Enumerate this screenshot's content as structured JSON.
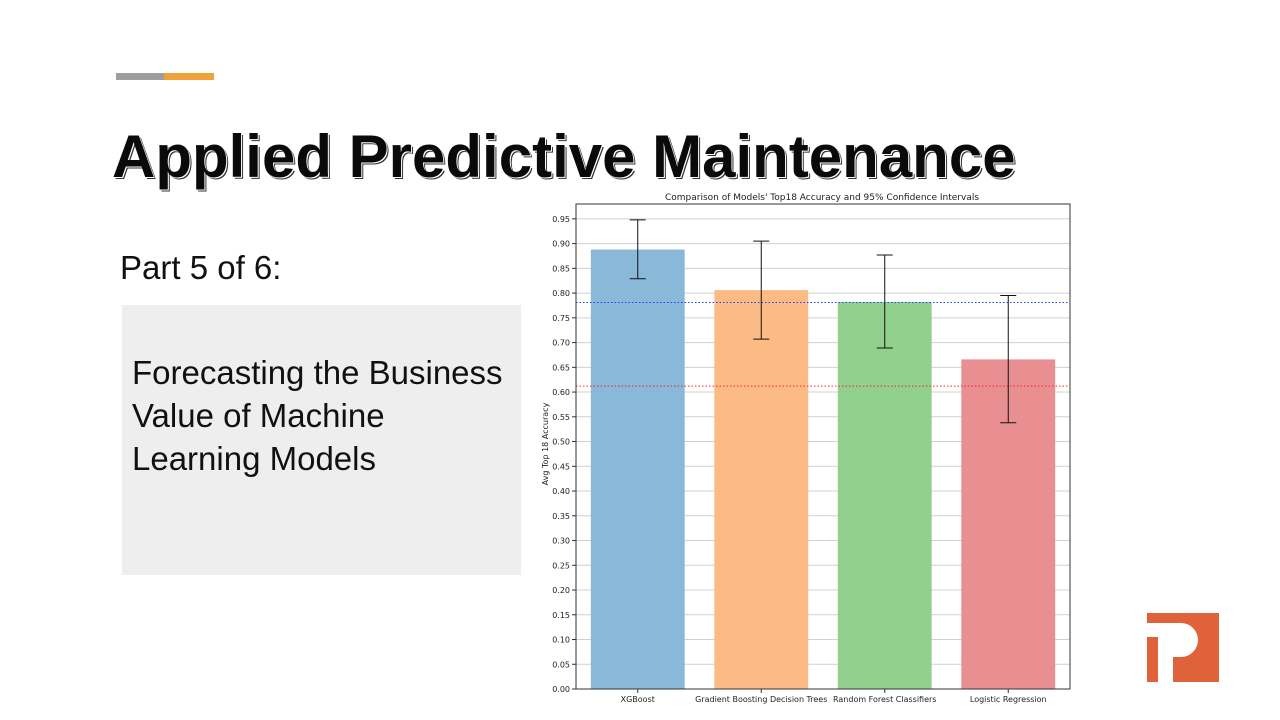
{
  "slide": {
    "title": "Applied Predictive Maintenance",
    "part_label": "Part 5 of 6:",
    "subtitle": "Forecasting the Business Value of Machine Learning Models"
  },
  "colors": {
    "accent_gray": "#9e9e9e",
    "accent_orange": "#f0a23a",
    "logo_orange": "#e0623a",
    "panel_bg": "#eeeeee"
  },
  "chart_data": {
    "type": "bar",
    "title": "Comparison of Models' Top18 Accuracy and 95% Confidence Intervals",
    "xlabel": "",
    "ylabel": "Avg Top 18 Accuracy",
    "categories": [
      "XGBoost",
      "Gradient Boosting Decision Trees",
      "Random Forest Classifiers",
      "Logistic Regression"
    ],
    "values": [
      0.888,
      0.806,
      0.782,
      0.666
    ],
    "ci_lower": [
      0.829,
      0.707,
      0.689,
      0.538
    ],
    "ci_upper": [
      0.948,
      0.905,
      0.877,
      0.795
    ],
    "bar_colors": [
      "#8ab8d8",
      "#fcbb84",
      "#92d08e",
      "#e98f92"
    ],
    "reference_lines": [
      {
        "value": 0.781,
        "color": "#1f3fff",
        "style": "dotted"
      },
      {
        "value": 0.612,
        "color": "#ff2020",
        "style": "dotted"
      }
    ],
    "ylim": [
      0,
      0.98
    ],
    "yticks": [
      "0.00",
      "0.05",
      "0.10",
      "0.15",
      "0.20",
      "0.25",
      "0.30",
      "0.35",
      "0.40",
      "0.45",
      "0.50",
      "0.55",
      "0.60",
      "0.65",
      "0.70",
      "0.75",
      "0.80",
      "0.85",
      "0.90",
      "0.95"
    ],
    "grid": "horizontal",
    "legend": "none"
  }
}
